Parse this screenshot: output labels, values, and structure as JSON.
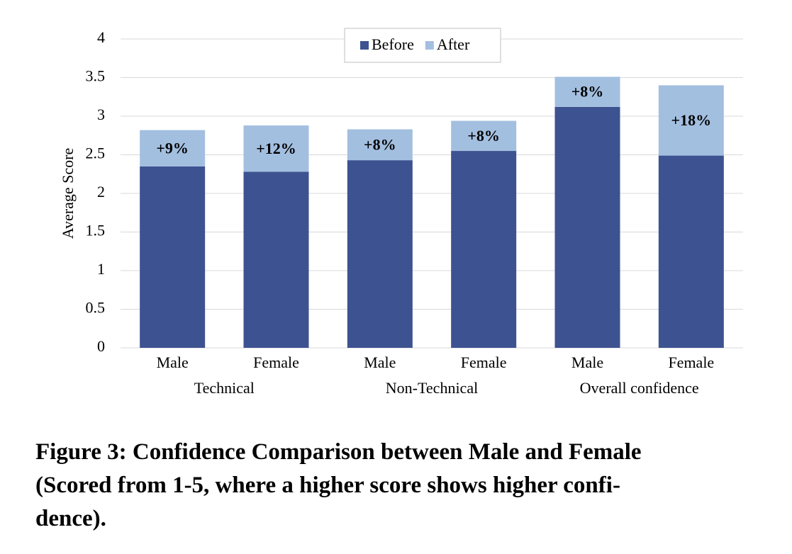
{
  "chart_data": {
    "type": "stacked_bar",
    "y_label": "Average Score",
    "groups": [
      {
        "name": "Technical",
        "categories": [
          "Male",
          "Female"
        ]
      },
      {
        "name": "Non-Technical",
        "categories": [
          "Male",
          "Female"
        ]
      },
      {
        "name": "Overall confidence",
        "categories": [
          "Male",
          "Female"
        ]
      }
    ],
    "series": [
      {
        "name": "Before",
        "color": "#3d5290",
        "values": [
          2.35,
          2.28,
          2.43,
          2.55,
          3.12,
          2.49
        ]
      },
      {
        "name": "After",
        "color": "#a3bfe0",
        "values": [
          0.47,
          0.6,
          0.4,
          0.39,
          0.39,
          0.91
        ]
      }
    ],
    "annotations": [
      "+9%",
      "+12%",
      "+8%",
      "+8%",
      "+8%",
      "+18%"
    ],
    "ylim": [
      0,
      4
    ],
    "yticks": [
      0,
      0.5,
      1,
      1.5,
      2,
      2.5,
      3,
      3.5,
      4
    ],
    "grid": true,
    "legend": "top"
  },
  "caption": {
    "lines": [
      "Figure 3: Confidence Comparison between Male and Female",
      "(Scored from 1-5, where a higher score shows higher confi-",
      "dence)."
    ]
  }
}
